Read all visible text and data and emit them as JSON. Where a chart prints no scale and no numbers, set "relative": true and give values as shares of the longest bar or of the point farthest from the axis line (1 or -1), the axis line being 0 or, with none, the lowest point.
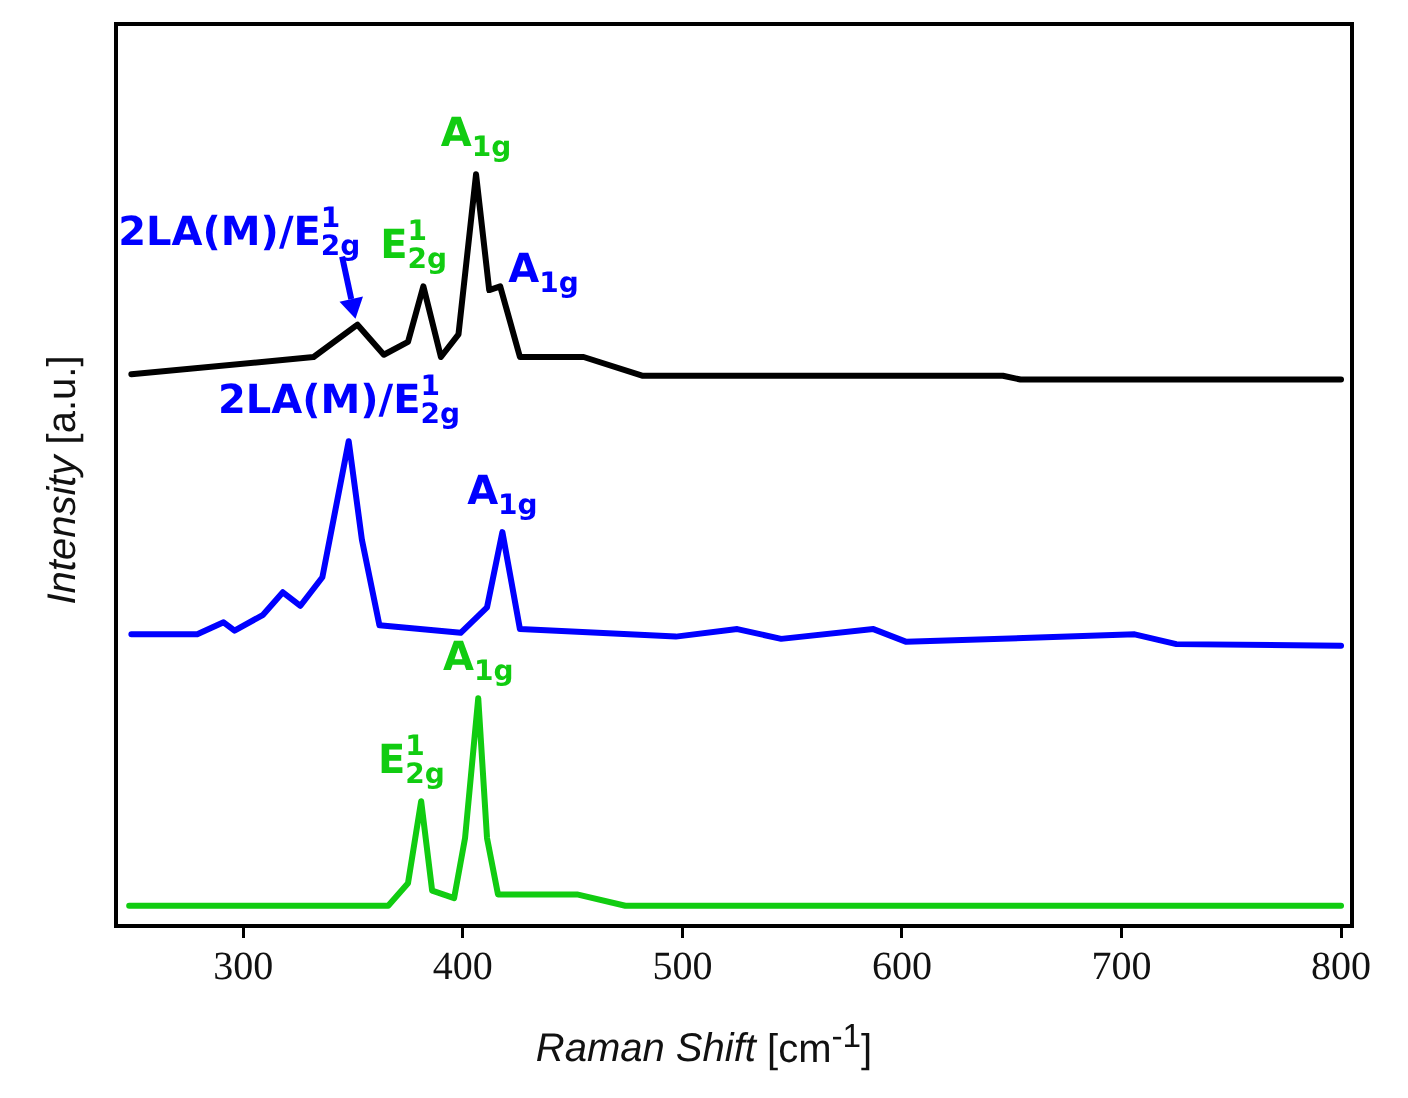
{
  "chart_data": {
    "type": "line",
    "xlabel": "Raman Shift [cm$^{-1}$]",
    "ylabel": "Intensity [a.u.]",
    "relative": true,
    "xlim": [
      242,
      805
    ],
    "xticks": [
      300,
      400,
      500,
      600,
      700,
      800
    ],
    "tick_labels": "x",
    "grid": false,
    "legend": false,
    "marker": "none",
    "line_style": "solid",
    "series": [
      {
        "color": "#000000",
        "x": [
          249,
          332,
          352,
          364,
          375,
          382,
          390,
          398,
          406,
          412,
          417,
          426,
          455,
          482,
          646,
          654,
          800
        ],
        "values": [
          0.734,
          0.757,
          0.8,
          0.76,
          0.777,
          0.851,
          0.757,
          0.787,
          1,
          0.846,
          0.851,
          0.757,
          0.757,
          0.732,
          0.732,
          0.727,
          0.727
        ]
      },
      {
        "color": "#0000ff",
        "x": [
          249,
          279,
          291,
          296,
          309,
          318,
          326,
          336,
          348,
          354,
          362,
          399,
          411,
          418,
          426,
          497,
          525,
          545,
          587,
          602,
          706,
          725,
          800
        ],
        "values": [
          0.388,
          0.388,
          0.404,
          0.393,
          0.414,
          0.444,
          0.426,
          0.464,
          0.645,
          0.514,
          0.4,
          0.39,
          0.424,
          0.524,
          0.395,
          0.385,
          0.395,
          0.382,
          0.395,
          0.378,
          0.388,
          0.375,
          0.373
        ]
      },
      {
        "color": "#11cc11",
        "x": [
          248,
          366,
          375,
          381,
          386,
          396,
          401,
          407,
          411,
          416,
          452,
          474,
          800
        ],
        "values": [
          0.027,
          0.027,
          0.057,
          0.166,
          0.047,
          0.037,
          0.117,
          0.303,
          0.117,
          0.042,
          0.042,
          0.027,
          0.027
        ]
      }
    ],
    "annotations": [
      {
        "text": "A$_{1g}$",
        "x": 406,
        "y": 1
      },
      {
        "text": "E$^{1}$$_{2g}$",
        "x": 382,
        "y": 0.851
      },
      {
        "text": "A$_{1g}$",
        "x": 417,
        "y": 0.851
      },
      {
        "text": "2LA(M)/E$^{1}$$_{2g}$",
        "x": 352,
        "y": 0.8
      },
      {
        "text": "2LA(M)/E$^{1}$$_{2g}$",
        "x": 348,
        "y": 0.645
      },
      {
        "text": "A$_{1g}$",
        "x": 418,
        "y": 0.524
      },
      {
        "text": "E$^{1}$$_{2g}$",
        "x": 381,
        "y": 0.166
      },
      {
        "text": "A$_{1g}$",
        "x": 407,
        "y": 0.303
      }
    ]
  }
}
